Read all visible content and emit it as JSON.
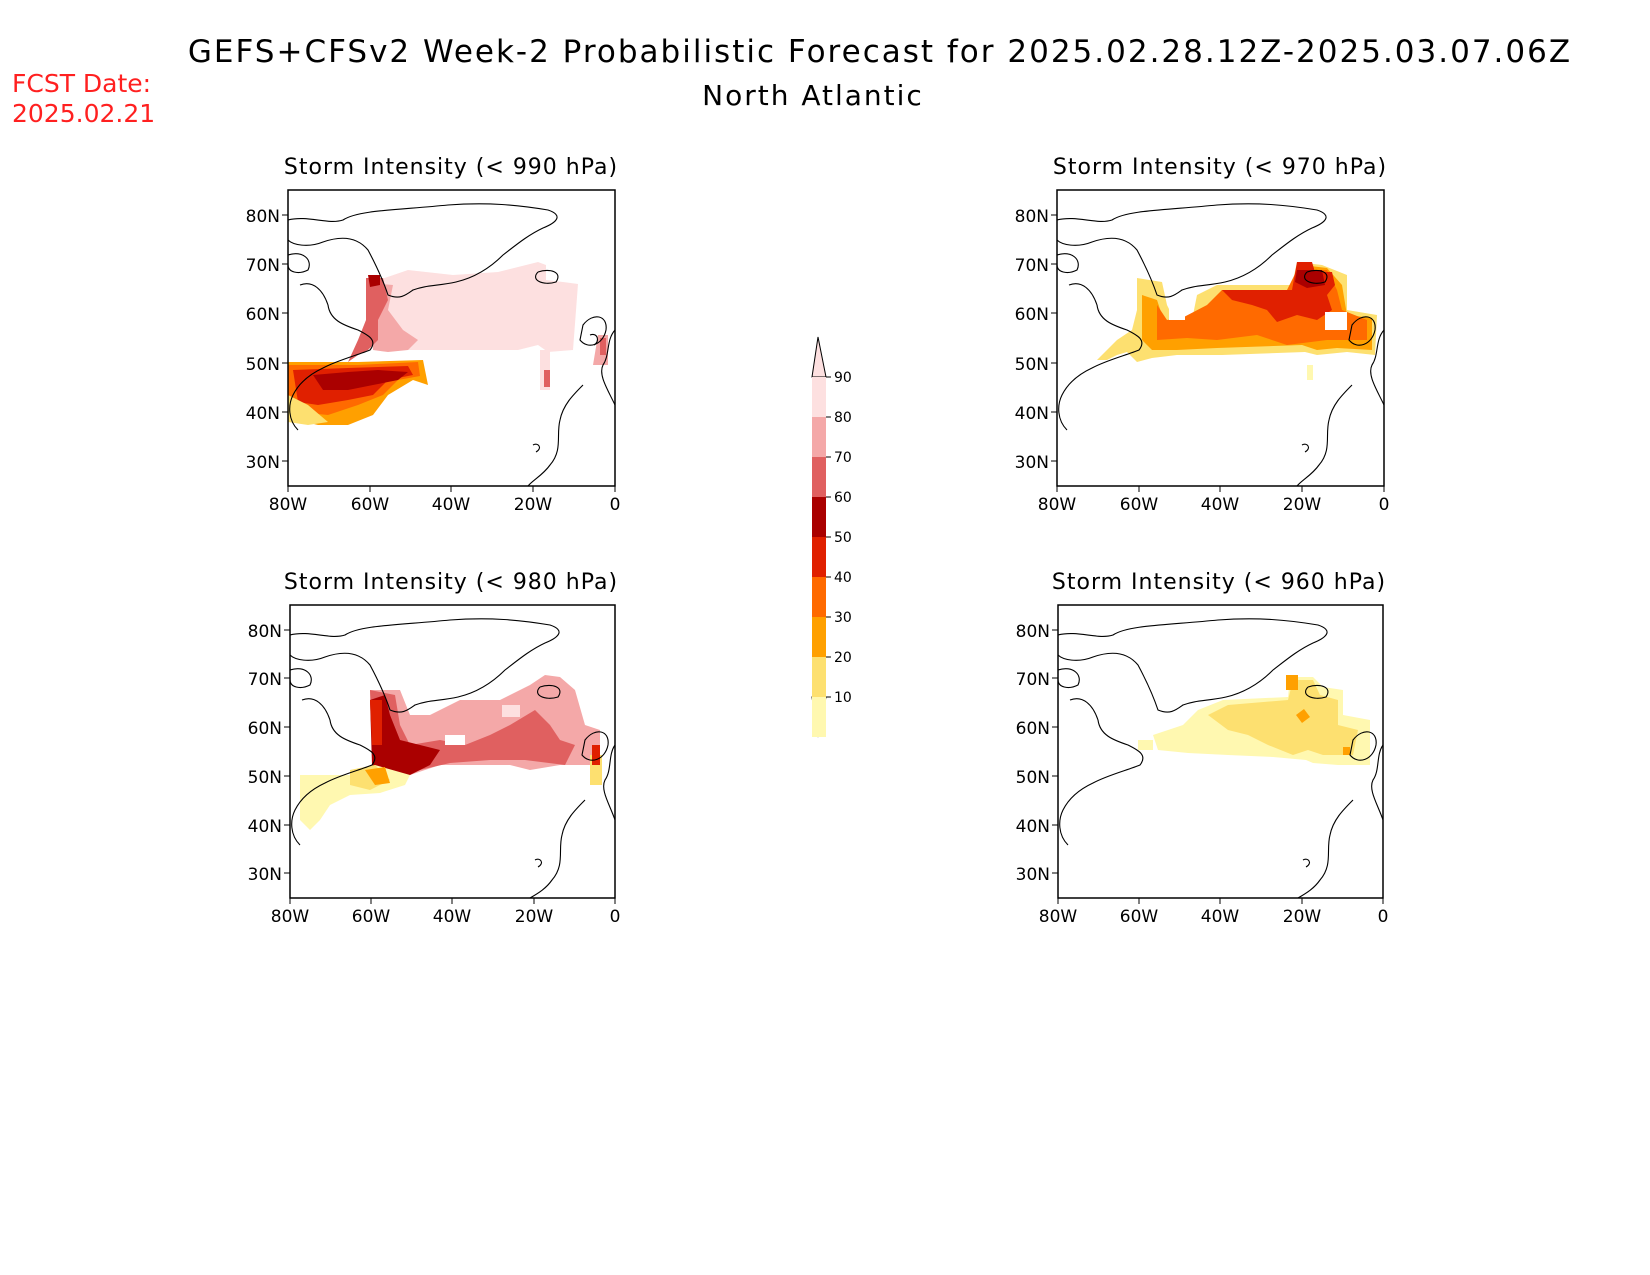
{
  "header": {
    "title": "GEFS+CFSv2 Week-2 Probabilistic Forecast for 2025.02.28.12Z-2025.03.07.06Z",
    "subtitle": "North Atlantic",
    "fcst_label": "FCST Date:",
    "fcst_date": "2025.02.21"
  },
  "lat_labels": [
    "80N",
    "70N",
    "60N",
    "50N",
    "40N",
    "30N"
  ],
  "lon_labels": [
    "80W",
    "60W",
    "40W",
    "20W",
    "0"
  ],
  "panels": [
    {
      "title": "Storm Intensity (< 990 hPa)"
    },
    {
      "title": "Storm Intensity (< 970 hPa)"
    },
    {
      "title": "Storm Intensity (< 980 hPa)"
    },
    {
      "title": "Storm Intensity (< 960 hPa)"
    }
  ],
  "colorbar": {
    "labels": [
      "90",
      "80",
      "70",
      "60",
      "50",
      "40",
      "30",
      "20",
      "10"
    ],
    "colors": [
      "#fde0e0",
      "#f4a8a8",
      "#e06060",
      "#aa0000",
      "#e02000",
      "#ff6a00",
      "#ffa000",
      "#fde070",
      "#fff8b0"
    ]
  }
}
